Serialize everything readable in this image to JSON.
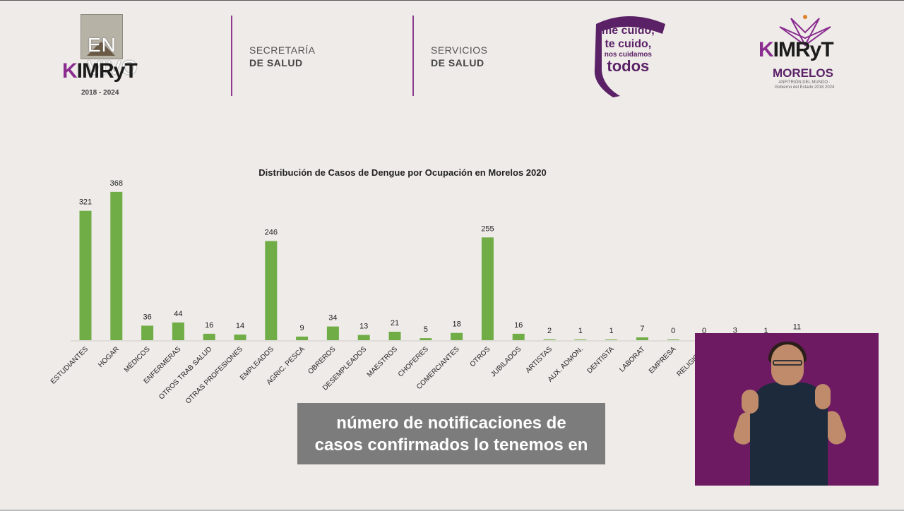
{
  "header": {
    "envivo_text": "EN VIVO",
    "brand_left": "IMRyT",
    "years_left": "2018 - 2024",
    "dept1_line1": "SECRETARÍA",
    "dept1_line2": "DE SALUD",
    "dept2_line1": "SERVICIOS",
    "dept2_line2": "DE SALUD",
    "slogan_line1": "me cuido,",
    "slogan_line2": "te cuido,",
    "slogan_line3": "nos cuidamos",
    "slogan_line4": "todos",
    "brand_right": "IMRyT",
    "brand_right_sub": "MORELOS",
    "brand_right_small": "ANFITRIÓN DEL MUNDO · Gobierno del Estado 2018 2024",
    "accent_color": "#8a2d8f"
  },
  "chart_data": {
    "type": "bar",
    "title": "Distribución de Casos de Dengue por Ocupación en Morelos 2020",
    "xlabel": "",
    "ylabel": "",
    "ylim": [
      0,
      380
    ],
    "grid": false,
    "bar_color": "#70ad47",
    "categories": [
      "ESTUDIANTES",
      "HOGAR",
      "MÉDICOS",
      "ENFERMERAS",
      "OTROS TRAB SALUD",
      "OTRAS PROFESIONES",
      "EMPLEADOS",
      "AGRIC. PESCA",
      "OBREROS",
      "DESEMPLEADOS",
      "MAESTROS",
      "CHOFERES",
      "COMERCIANTES",
      "OTROS",
      "JUBILADOS",
      "ARTISTAS",
      "AUX. ADMON.",
      "DENTISTA",
      "LABORAT",
      "EMPRESA",
      "RELIGIOSO",
      "",
      "",
      ""
    ],
    "values": [
      321,
      368,
      36,
      44,
      16,
      14,
      246,
      9,
      34,
      13,
      21,
      5,
      18,
      255,
      16,
      2,
      1,
      1,
      7,
      0,
      0,
      3,
      1,
      11
    ]
  },
  "caption": {
    "line1": "número de notificaciones de",
    "line2": "casos confirmados lo tenemos en"
  }
}
